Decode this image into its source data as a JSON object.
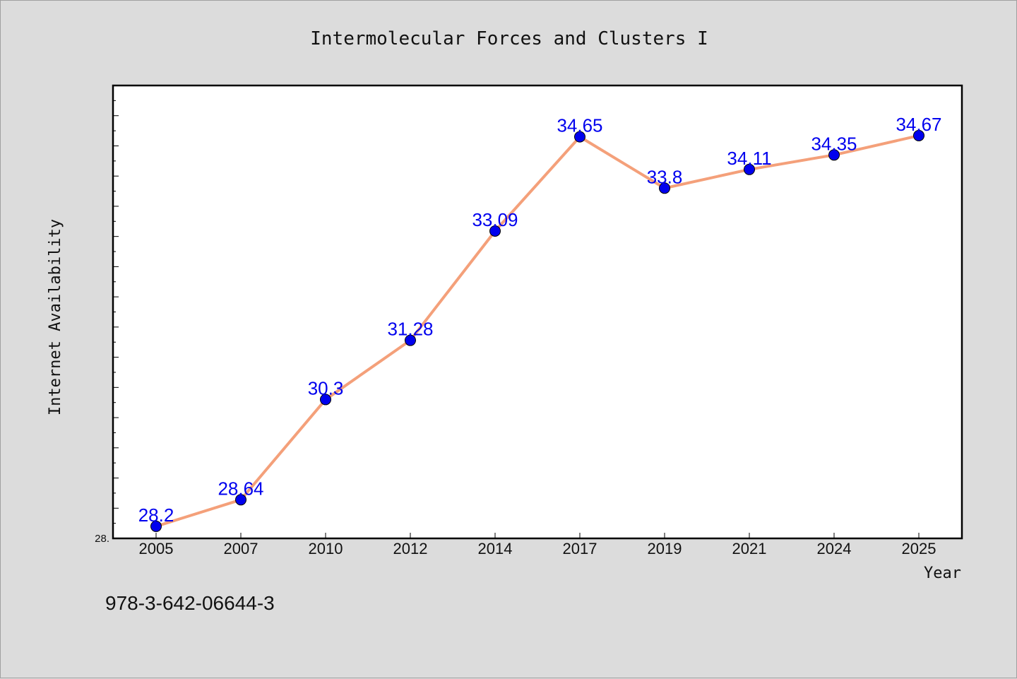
{
  "chart_data": {
    "type": "line",
    "title": "Intermolecular Forces and Clusters I",
    "xlabel": "Year",
    "ylabel": "Internet Availability",
    "categories": [
      "2005",
      "2007",
      "2010",
      "2012",
      "2014",
      "2017",
      "2019",
      "2021",
      "2024",
      "2025"
    ],
    "series": [
      {
        "values": [
          28.2,
          28.64,
          30.3,
          31.28,
          33.09,
          34.65,
          33.8,
          34.11,
          34.35,
          34.67
        ]
      }
    ],
    "data_labels": [
      "28.2",
      "28.64",
      "30.3",
      "31.28",
      "33.09",
      "34.65",
      "33.8",
      "34.11",
      "34.35",
      "34.67"
    ],
    "ylim": [
      28.0,
      35.5
    ],
    "y_tick_label": "28.",
    "grid": false,
    "legend": "none",
    "line_color": "#f4a07a",
    "marker_color": "#0000ee",
    "label_color": "#0000ee"
  },
  "footer_text": "978-3-642-06644-3"
}
